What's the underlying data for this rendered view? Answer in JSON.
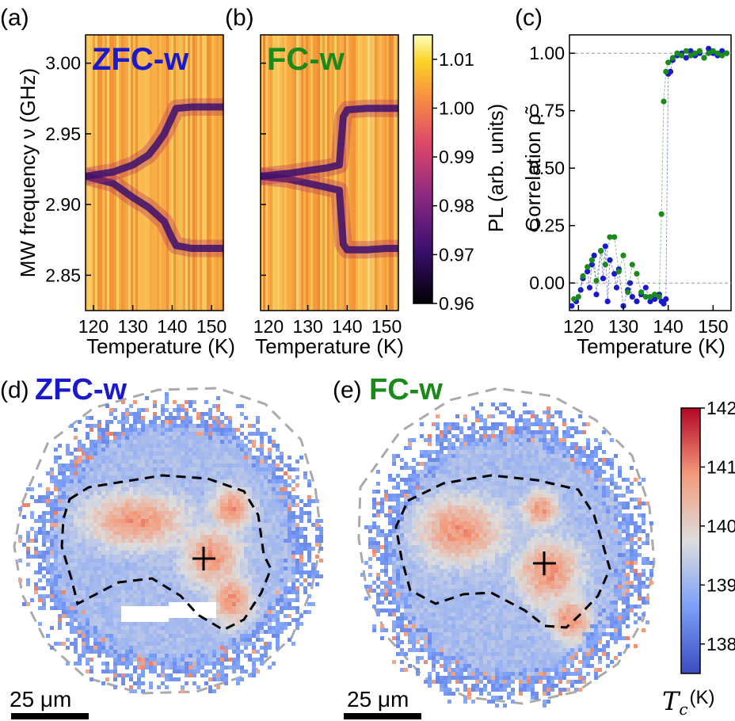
{
  "colors": {
    "zfc_blue": "#1a1acc",
    "fc_green": "#1a8a1a",
    "dashed_gray": "#aaaaaa",
    "dashed_black": "#000000",
    "scalebar": "#000000"
  },
  "panels": {
    "a": {
      "letter": "(a)",
      "tag": "ZFC-w"
    },
    "b": {
      "letter": "(b)",
      "tag": "FC-w"
    },
    "c": {
      "letter": "(c)"
    },
    "d": {
      "letter": "(d)",
      "tag": "ZFC-w",
      "scalebar": "25 μm"
    },
    "e": {
      "letter": "(e)",
      "tag": "FC-w",
      "scalebar": "25 μm"
    }
  },
  "chart_data": [
    {
      "type": "heatmap",
      "panel": "a",
      "title": "ZFC-w",
      "xlabel": "Temperature (K)",
      "ylabel": "MW frequency ν (GHz)",
      "x_ticks": [
        120,
        130,
        140,
        150
      ],
      "y_ticks": [
        "2.85",
        "2.90",
        "2.95",
        "3.00"
      ],
      "xlim": [
        118,
        153
      ],
      "ylim": [
        2.825,
        3.02
      ],
      "colormap": "inferno",
      "series": [
        {
          "name": "lower dip",
          "x": [
            118,
            125,
            130,
            134,
            136,
            138,
            140,
            141,
            145,
            150,
            153
          ],
          "y": [
            2.92,
            2.915,
            2.905,
            2.898,
            2.893,
            2.888,
            2.876,
            2.871,
            2.869,
            2.869,
            2.869
          ]
        },
        {
          "name": "upper dip",
          "x": [
            118,
            125,
            130,
            134,
            136,
            138,
            140,
            141,
            145,
            150,
            153
          ],
          "y": [
            2.92,
            2.923,
            2.928,
            2.935,
            2.942,
            2.95,
            2.962,
            2.968,
            2.969,
            2.969,
            2.969
          ]
        }
      ]
    },
    {
      "type": "heatmap",
      "panel": "b",
      "title": "FC-w",
      "xlabel": "Temperature (K)",
      "x_ticks": [
        120,
        130,
        140,
        150
      ],
      "xlim": [
        118,
        153
      ],
      "ylim": [
        2.825,
        3.02
      ],
      "colormap": "inferno",
      "series": [
        {
          "name": "lower dip",
          "x": [
            118,
            125,
            130,
            135,
            138,
            139,
            140,
            145,
            150,
            153
          ],
          "y": [
            2.92,
            2.918,
            2.915,
            2.912,
            2.91,
            2.872,
            2.868,
            2.868,
            2.869,
            2.869
          ]
        },
        {
          "name": "upper dip",
          "x": [
            118,
            125,
            130,
            135,
            138,
            139,
            140,
            145,
            150,
            153
          ],
          "y": [
            2.92,
            2.922,
            2.924,
            2.926,
            2.928,
            2.962,
            2.967,
            2.968,
            2.968,
            2.968
          ]
        }
      ],
      "colorbar": {
        "label": "PL (arb. units)",
        "ticks": [
          "0.96",
          "0.97",
          "0.98",
          "0.99",
          "1.00",
          "1.01"
        ],
        "range": [
          0.96,
          1.015
        ]
      }
    },
    {
      "type": "scatter",
      "panel": "c",
      "xlabel": "Temperature (K)",
      "ylabel": "Correlation ρ̃",
      "x_ticks": [
        120,
        130,
        140,
        150
      ],
      "y_ticks": [
        "0.00",
        "0.25",
        "0.50",
        "0.75",
        "1.00"
      ],
      "xlim": [
        118,
        154
      ],
      "ylim": [
        -0.12,
        1.08
      ],
      "grid": "dashed reference lines at 0 and 1",
      "series": [
        {
          "name": "ZFC-w",
          "color": "#1a1acc",
          "x": [
            118.5,
            119.5,
            120.5,
            121,
            122,
            122.5,
            123,
            123.5,
            124,
            125,
            125.5,
            126,
            126.5,
            127,
            128,
            128.5,
            129,
            130,
            131,
            131.5,
            132,
            133,
            134,
            135,
            136,
            137,
            138,
            138.5,
            139,
            139.5,
            140,
            140.5,
            141,
            142,
            143,
            144,
            145,
            146,
            147,
            148,
            149,
            150,
            151,
            152,
            153
          ],
          "y": [
            -0.1,
            -0.08,
            -0.03,
            0.02,
            0.05,
            -0.02,
            0.08,
            0.12,
            -0.05,
            0.14,
            0.02,
            0.16,
            -0.08,
            0.1,
            0.04,
            -0.02,
            0.06,
            -0.1,
            -0.03,
            0.0,
            -0.06,
            -0.08,
            -0.05,
            -0.02,
            -0.08,
            -0.07,
            -0.05,
            -0.08,
            -0.09,
            -0.07,
            0.91,
            0.92,
            0.97,
            0.99,
            1.0,
            0.98,
            1.01,
            0.99,
            1.0,
            0.98,
            1.02,
            1.0,
            0.99,
            1.01,
            1.0
          ]
        },
        {
          "name": "FC-w",
          "color": "#1a8a1a",
          "x": [
            119,
            120,
            121,
            122,
            123,
            124,
            125,
            126,
            127,
            128,
            129,
            130,
            131,
            132,
            133,
            134,
            135,
            136,
            137,
            138,
            138.5,
            139,
            139.5,
            140,
            141,
            142,
            143,
            144,
            145,
            146,
            147,
            148,
            149,
            150,
            151,
            152,
            153
          ],
          "y": [
            -0.07,
            -0.06,
            0.03,
            0.07,
            0.1,
            0.01,
            0.14,
            0.08,
            0.2,
            0.2,
            0.05,
            0.12,
            -0.04,
            0.08,
            0.04,
            -0.04,
            -0.06,
            -0.06,
            -0.05,
            -0.06,
            0.3,
            0.79,
            0.92,
            0.96,
            0.98,
            1.0,
            0.99,
            1.01,
            0.99,
            1.0,
            1.01,
            0.98,
            1.0,
            1.01,
            1.0,
            0.99,
            1.0
          ]
        }
      ]
    },
    {
      "type": "heatmap",
      "panel": "d",
      "title": "ZFC-w",
      "colorbar": {
        "label": "T_c (K)",
        "ticks": [
          "138",
          "139",
          "140",
          "141",
          "142"
        ],
        "range": [
          137.5,
          142
        ]
      }
    },
    {
      "type": "heatmap",
      "panel": "e",
      "title": "FC-w",
      "colorbar": {
        "label": "T_c (K)",
        "ticks": [
          "138",
          "139",
          "140",
          "141",
          "142"
        ],
        "range": [
          137.5,
          142
        ]
      }
    }
  ],
  "tc_symbol": "T",
  "tc_sub": "c",
  "tc_unit": "(K)"
}
